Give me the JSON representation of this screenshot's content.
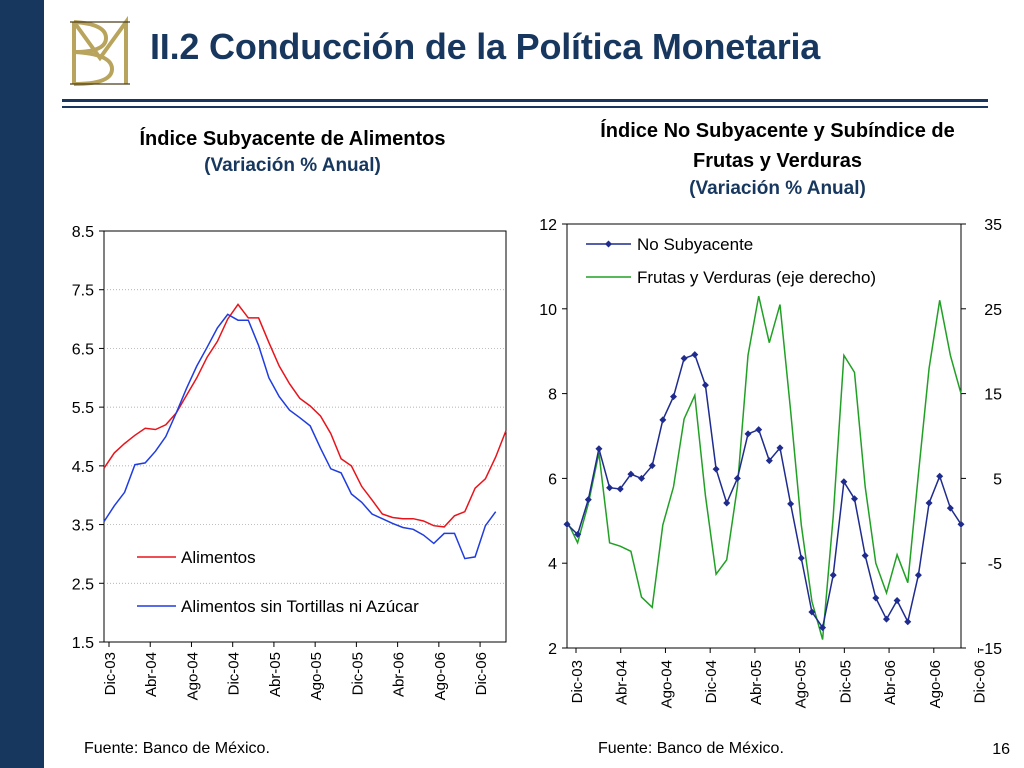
{
  "slide": {
    "title": "II.2 Conducción de la Política Monetaria",
    "page_number": "16",
    "colors": {
      "navy": "#17375e",
      "logo_gold": "#b8a45c"
    }
  },
  "left_chart": {
    "title": "Índice Subyacente de Alimentos",
    "subtitle": "(Variación % Anual)",
    "source": "Fuente: Banco de México."
  },
  "right_chart": {
    "title_line1": "Índice No Subyacente y Subíndice de",
    "title_line2": "Frutas y Verduras",
    "subtitle": "(Variación % Anual)",
    "source": "Fuente: Banco de México."
  },
  "chart_data": [
    {
      "type": "line",
      "title": "Índice Subyacente de Alimentos",
      "subtitle": "(Variación % Anual)",
      "x_tick_labels": [
        "Dic-03",
        "Abr-04",
        "Ago-04",
        "Dic-04",
        "Abr-05",
        "Ago-05",
        "Dic-05",
        "Abr-06",
        "Ago-06",
        "Dic-06"
      ],
      "y_ticks": [
        "8.5",
        "7.5",
        "6.5",
        "5.5",
        "4.5",
        "3.5",
        "2.5",
        "1.5"
      ],
      "ylim": [
        1.5,
        8.5
      ],
      "grid": "horizontal dotted",
      "legend_position": "bottom-right",
      "series": [
        {
          "name": "Alimentos",
          "color": "#e8141b",
          "values": [
            4.46,
            4.72,
            4.88,
            5.02,
            5.14,
            5.12,
            5.2,
            5.4,
            5.7,
            6.0,
            6.35,
            6.62,
            7.0,
            7.25,
            7.02,
            7.02,
            6.6,
            6.2,
            5.9,
            5.65,
            5.52,
            5.35,
            5.05,
            4.62,
            4.5,
            4.15,
            3.92,
            3.68,
            3.62,
            3.6,
            3.6,
            3.56,
            3.48,
            3.46,
            3.65,
            3.72,
            4.12,
            4.28,
            4.65,
            5.1
          ]
        },
        {
          "name": "Alimentos sin Tortillas ni Azúcar",
          "color": "#1f3ce0",
          "values": [
            3.55,
            3.82,
            4.05,
            4.52,
            4.55,
            4.75,
            5.0,
            5.4,
            5.82,
            6.2,
            6.52,
            6.85,
            7.08,
            6.98,
            6.98,
            6.55,
            6.0,
            5.68,
            5.45,
            5.32,
            5.18,
            4.8,
            4.45,
            4.38,
            4.02,
            3.88,
            3.68,
            3.6,
            3.52,
            3.45,
            3.42,
            3.32,
            3.18,
            3.35,
            3.35,
            2.92,
            2.95,
            3.48,
            3.72
          ]
        }
      ]
    },
    {
      "type": "line",
      "title": "Índice No Subyacente y Subíndice de Frutas y Verduras",
      "subtitle": "(Variación % Anual)",
      "x_tick_labels": [
        "Dic-03",
        "Abr-04",
        "Ago-04",
        "Dic-04",
        "Abr-05",
        "Ago-05",
        "Dic-05",
        "Abr-06",
        "Ago-06",
        "Dic-06"
      ],
      "y_left_ticks": [
        "12",
        "10",
        "8",
        "6",
        "4",
        "2"
      ],
      "y_right_ticks": [
        "35",
        "25",
        "15",
        "5",
        "-5",
        "-15"
      ],
      "ylim_left": [
        2,
        12
      ],
      "ylim_right": [
        -15,
        35
      ],
      "grid": "none",
      "legend_position": "top",
      "series": [
        {
          "name": "No Subyacente",
          "color": "#1f2c8e",
          "axis": "left",
          "markers": "diamond",
          "values": [
            4.92,
            4.68,
            5.5,
            6.7,
            5.78,
            5.75,
            6.1,
            6.0,
            6.3,
            7.38,
            7.93,
            8.83,
            8.92,
            8.2,
            6.22,
            5.42,
            6.0,
            7.05,
            7.15,
            6.42,
            6.72,
            5.4,
            4.12,
            2.85,
            2.48,
            3.72,
            5.92,
            5.52,
            4.18,
            3.18,
            2.68,
            3.12,
            2.62,
            3.72,
            5.42,
            6.05,
            5.3,
            4.92
          ]
        },
        {
          "name": "Frutas y Verduras (eje derecho)",
          "color": "#21a025",
          "axis": "right",
          "values": [
            0.0,
            -2.6,
            2.0,
            8.0,
            -2.6,
            -3.0,
            -3.6,
            -9.0,
            -10.2,
            -0.5,
            4.0,
            12.0,
            14.8,
            3.0,
            -6.3,
            -4.6,
            4.0,
            19.5,
            26.5,
            21.0,
            25.5,
            13.0,
            -0.5,
            -9.5,
            -14.0,
            0.5,
            19.5,
            17.5,
            4.0,
            -5.0,
            -8.5,
            -4.0,
            -7.3,
            5.5,
            18.0,
            26.0,
            19.5,
            15.0
          ]
        }
      ]
    }
  ]
}
